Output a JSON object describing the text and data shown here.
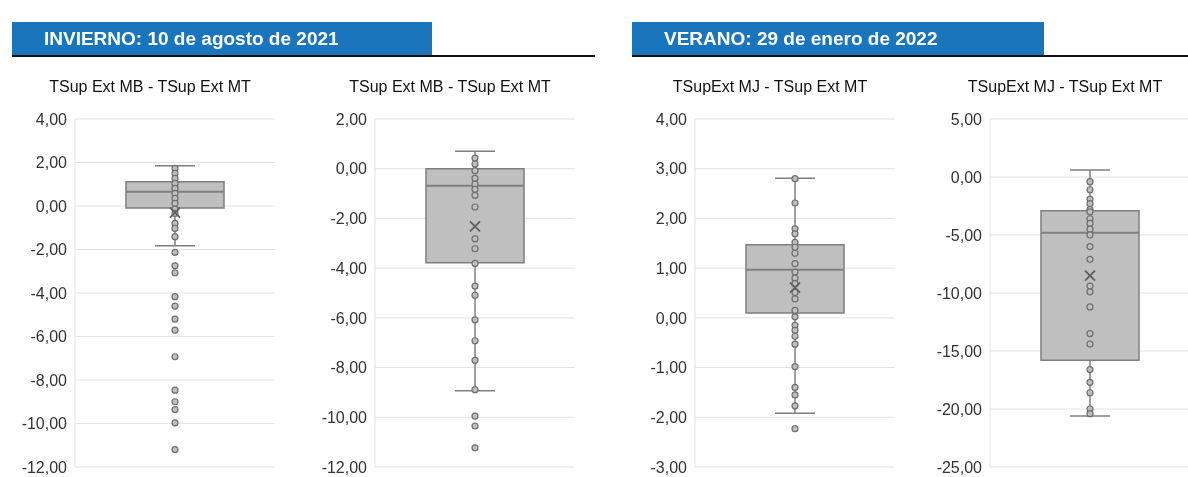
{
  "chart_data": [
    {
      "type": "box",
      "title": "TSup Ext MB - TSup Ext MT",
      "annotations": [
        "INVIERNO: 10 de agosto de 2021"
      ],
      "categories": [
        null
      ],
      "ylim": [
        -12,
        4
      ],
      "yticks": [
        {
          "value": 4,
          "label": "4,00"
        },
        {
          "value": 2,
          "label": "2,00"
        },
        {
          "value": 0,
          "label": "0,00"
        },
        {
          "value": -2,
          "label": "-2,00"
        },
        {
          "value": -4,
          "label": "-4,00"
        },
        {
          "value": -6,
          "label": "-6,00"
        },
        {
          "value": -8,
          "label": "-8,00"
        },
        {
          "value": -10,
          "label": "-10,00"
        },
        {
          "value": -12,
          "label": "-12,00"
        }
      ],
      "grid": "y",
      "marker": "circle",
      "series": [
        {
          "type": "box",
          "color": "#bfbfbf",
          "boxes": [
            {
              "low": -1.83,
              "q1": -0.09,
              "median": 0.66,
              "q3": 1.12,
              "high": 1.85,
              "mean": -0.3,
              "outliers": [
                -2.13,
                -2.75,
                -3.07,
                -4.17,
                -4.6,
                -5.2,
                -5.71,
                -6.93,
                -8.47,
                -9.0,
                -9.36,
                -9.97,
                -11.2
              ]
            }
          ]
        },
        {
          "type": "scatter",
          "color": "#bfbfbf",
          "x": [
            null,
            null,
            null,
            null,
            null,
            null,
            null,
            null,
            null,
            null,
            null,
            null,
            null
          ],
          "values": [
            1.73,
            1.5,
            1.27,
            1.04,
            0.81,
            0.58,
            0.35,
            0.12,
            -0.15,
            -0.34,
            -0.8,
            -1.03,
            -1.41
          ]
        }
      ]
    },
    {
      "type": "box",
      "title": "TSup Ext MB - TSup Ext MT",
      "categories": [
        null
      ],
      "ylim": [
        -12,
        2
      ],
      "yticks": [
        {
          "value": 2,
          "label": "2,00"
        },
        {
          "value": 0,
          "label": "0,00"
        },
        {
          "value": -2,
          "label": "-2,00"
        },
        {
          "value": -4,
          "label": "-4,00"
        },
        {
          "value": -6,
          "label": "-6,00"
        },
        {
          "value": -8,
          "label": "-8,00"
        },
        {
          "value": -10,
          "label": "-10,00"
        },
        {
          "value": -12,
          "label": "-12,00"
        }
      ],
      "grid": "y",
      "marker": "circle",
      "series": [
        {
          "type": "box",
          "color": "#bfbfbf",
          "boxes": [
            {
              "low": -8.93,
              "q1": -3.78,
              "median": -0.69,
              "q3": 0,
              "high": 0.7,
              "mean": -2.32,
              "outliers": [
                -9.95,
                -10.35,
                -11.23
              ]
            }
          ]
        },
        {
          "type": "scatter",
          "color": "#bfbfbf",
          "x": [
            null,
            null,
            null,
            null,
            null,
            null,
            null,
            null,
            null,
            null,
            null,
            null,
            null,
            null,
            null,
            null,
            null
          ],
          "values": [
            0.43,
            0.19,
            -0.08,
            -0.39,
            -0.62,
            -0.83,
            -1.07,
            -1.54,
            -2.82,
            -3.22,
            -3.81,
            -4.72,
            -5.09,
            -6.08,
            -6.92,
            -7.71,
            -8.89
          ]
        }
      ]
    },
    {
      "type": "box",
      "title": "TSupExt MJ - TSup Ext MT",
      "annotations": [
        "VERANO: 29 de enero de 2022"
      ],
      "categories": [
        null
      ],
      "ylim": [
        -3,
        4
      ],
      "yticks": [
        {
          "value": 4,
          "label": "4,00"
        },
        {
          "value": 3,
          "label": "3,00"
        },
        {
          "value": 2,
          "label": "2,00"
        },
        {
          "value": 1,
          "label": "1,00"
        },
        {
          "value": 0,
          "label": "0,00"
        },
        {
          "value": -1,
          "label": "-1,00"
        },
        {
          "value": -2,
          "label": "-2,00"
        },
        {
          "value": -3,
          "label": "-3,00"
        }
      ],
      "grid": "y",
      "marker": "circle",
      "series": [
        {
          "type": "box",
          "color": "#bfbfbf",
          "boxes": [
            {
              "low": -1.92,
              "q1": 0.1,
              "median": 0.97,
              "q3": 1.47,
              "high": 2.81,
              "mean": 0.61,
              "outliers": [
                -2.23
              ]
            }
          ]
        },
        {
          "type": "scatter",
          "color": "#bfbfbf",
          "x": [
            null,
            null,
            null,
            null,
            null,
            null,
            null,
            null,
            null,
            null,
            null,
            null,
            null,
            null,
            null,
            null,
            null,
            null,
            null,
            null,
            null,
            null,
            null
          ],
          "values": [
            2.8,
            2.31,
            1.79,
            1.69,
            1.52,
            1.42,
            1.3,
            1.09,
            0.92,
            0.8,
            0.69,
            0.51,
            0.38,
            0.15,
            0.02,
            -0.15,
            -0.25,
            -0.37,
            -0.53,
            -0.98,
            -1.4,
            -1.55,
            -1.77
          ]
        }
      ]
    },
    {
      "type": "box",
      "title": "TSupExt MJ - TSup Ext MT",
      "categories": [
        null
      ],
      "ylim": [
        -25,
        5
      ],
      "yticks": [
        {
          "value": 5,
          "label": "5,00"
        },
        {
          "value": 0,
          "label": "0,00"
        },
        {
          "value": -5,
          "label": "-5,00"
        },
        {
          "value": -10,
          "label": "-10,00"
        },
        {
          "value": -15,
          "label": "-15,00"
        },
        {
          "value": -20,
          "label": "-20,00"
        },
        {
          "value": -25,
          "label": "-25,00"
        }
      ],
      "grid": "y",
      "marker": "circle",
      "series": [
        {
          "type": "box",
          "color": "#bfbfbf",
          "boxes": [
            {
              "low": -20.6,
              "q1": -15.8,
              "median": -4.8,
              "q3": -2.9,
              "high": 0.6,
              "mean": -8.5
            }
          ]
        },
        {
          "type": "scatter",
          "color": "#bfbfbf",
          "x": [
            null,
            null,
            null,
            null,
            null,
            null,
            null,
            null,
            null,
            null,
            null,
            null,
            null,
            null,
            null,
            null,
            null,
            null,
            null,
            null,
            null,
            null
          ],
          "values": [
            -0.4,
            -1.1,
            -1.9,
            -2.3,
            -2.8,
            -3.0,
            -3.6,
            -4.0,
            -4.5,
            -5.0,
            -6.0,
            -7.1,
            -9.4,
            -9.9,
            -11.2,
            -13.5,
            -14.4,
            -16.6,
            -17.7,
            -18.6,
            -20.0,
            -20.4
          ]
        }
      ]
    }
  ]
}
